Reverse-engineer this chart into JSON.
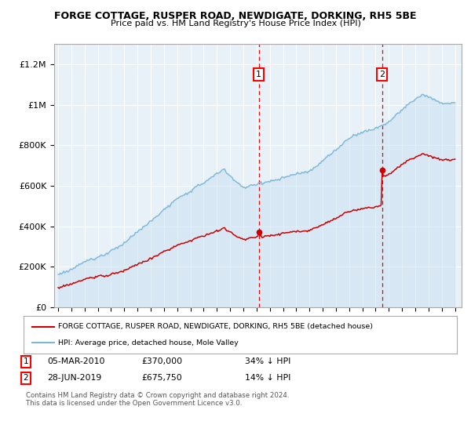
{
  "title": "FORGE COTTAGE, RUSPER ROAD, NEWDIGATE, DORKING, RH5 5BE",
  "subtitle": "Price paid vs. HM Land Registry's House Price Index (HPI)",
  "ylim": [
    0,
    1300000
  ],
  "yticks": [
    0,
    200000,
    400000,
    600000,
    800000,
    1000000,
    1200000
  ],
  "ytick_labels": [
    "£0",
    "£200K",
    "£400K",
    "£600K",
    "£800K",
    "£1M",
    "£1.2M"
  ],
  "hpi_color": "#7ab8d9",
  "hpi_fill_color": "#c8dff0",
  "house_color": "#cc0000",
  "bg_color": "#e8f0f8",
  "sale1_year": 2010.17,
  "sale1_price": 370000,
  "sale2_year": 2019.49,
  "sale2_price": 675750,
  "legend_house_label": "FORGE COTTAGE, RUSPER ROAD, NEWDIGATE, DORKING, RH5 5BE (detached house)",
  "legend_hpi_label": "HPI: Average price, detached house, Mole Valley",
  "copyright": "Contains HM Land Registry data © Crown copyright and database right 2024.\nThis data is licensed under the Open Government Licence v3.0."
}
